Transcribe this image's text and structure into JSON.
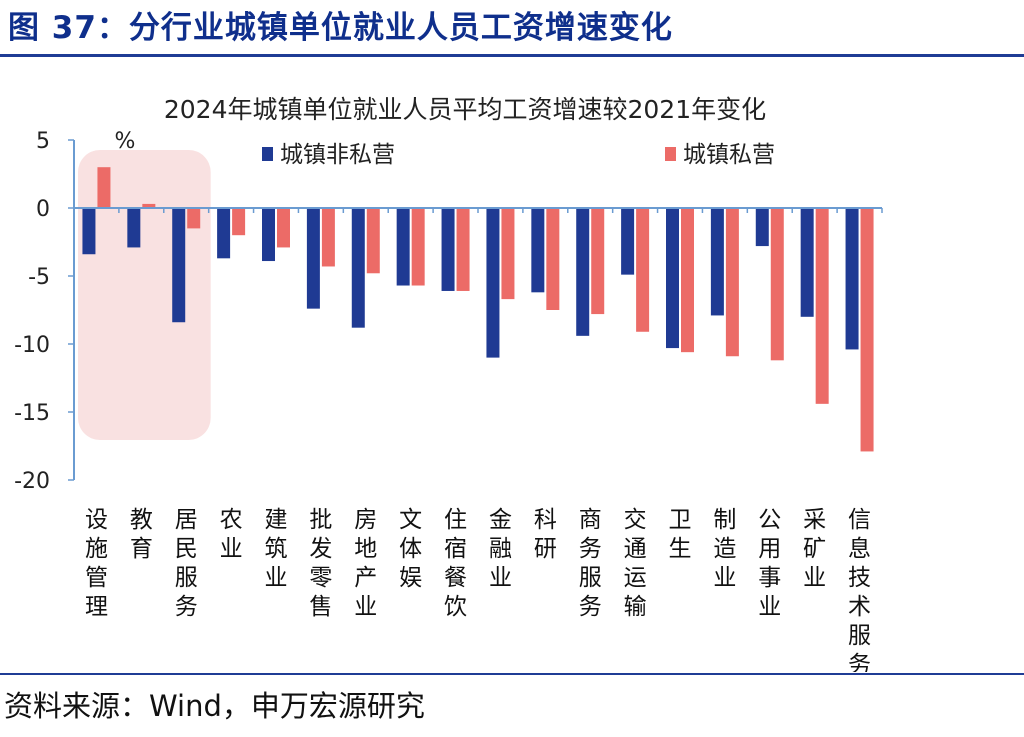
{
  "figure": {
    "title": "图 37：分行业城镇单位就业人员工资增速变化",
    "source": "资料来源：Wind，申万宏源研究"
  },
  "chart_data": {
    "type": "bar",
    "title": "2024年城镇单位就业人员平均工资增速较2021年变化",
    "ylabel": "%",
    "xlabel": "",
    "ylim": [
      -20,
      5
    ],
    "yticks": [
      5,
      0,
      -5,
      -10,
      -15,
      -20
    ],
    "grid": false,
    "legend_position": "top",
    "categories": [
      "设施管理",
      "教育",
      "居民服务",
      "农业",
      "建筑业",
      "批发零售",
      "房地产业",
      "文体娱",
      "住宿餐饮",
      "金融业",
      "科研",
      "商务服务",
      "交通运输",
      "卫生",
      "制造业",
      "公用事业",
      "采矿业",
      "信息技术服务"
    ],
    "series": [
      {
        "name": "城镇非私营",
        "color": "#1f3a93",
        "values": [
          -3.4,
          -2.9,
          -8.4,
          -3.7,
          -3.9,
          -7.4,
          -8.8,
          -5.7,
          -6.1,
          -11.0,
          -6.2,
          -9.4,
          -4.9,
          -10.3,
          -7.9,
          -2.8,
          -8.0,
          -10.4
        ]
      },
      {
        "name": "城镇私营",
        "color": "#ec6b67",
        "values": [
          3.0,
          0.3,
          -1.5,
          -2.0,
          -2.9,
          -4.3,
          -4.8,
          -5.7,
          -6.1,
          -6.7,
          -7.5,
          -7.8,
          -9.1,
          -10.6,
          -10.9,
          -11.2,
          -14.4,
          -17.9
        ]
      }
    ],
    "highlight_categories": [
      "设施管理",
      "教育",
      "居民服务"
    ],
    "highlight_color": "#f9e1e1",
    "axis_color": "#6a9bd1"
  }
}
